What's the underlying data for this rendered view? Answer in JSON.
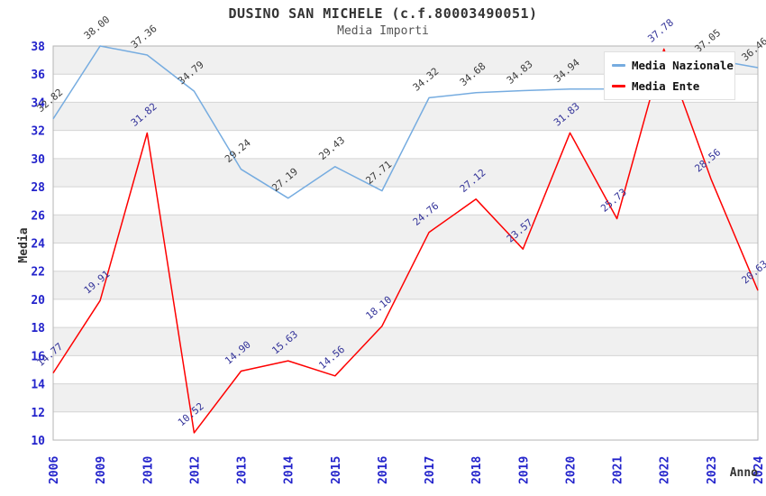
{
  "title": "DUSINO SAN MICHELE (c.f.80003490051)",
  "subtitle": "Media Importi",
  "legend": {
    "items": [
      {
        "label": "Media Nazionale",
        "color": "#76ace0"
      },
      {
        "label": "Media Ente",
        "color": "#fe0000"
      }
    ]
  },
  "chart_data": {
    "type": "line",
    "title": "DUSINO SAN MICHELE (c.f.80003490051)",
    "subtitle": "Media Importi",
    "xlabel": "Anno",
    "ylabel": "Media",
    "ylim": [
      10,
      38
    ],
    "ytick_step": 2,
    "grid": true,
    "legend_position": "top-right",
    "categories": [
      "2006",
      "2009",
      "2010",
      "2012",
      "2013",
      "2014",
      "2015",
      "2016",
      "2017",
      "2018",
      "2019",
      "2020",
      "2021",
      "2022",
      "2023",
      "2024"
    ],
    "series": [
      {
        "name": "Media Nazionale",
        "color": "#76ace0",
        "label_color": "#3c3c3c",
        "values": [
          32.82,
          38.0,
          37.36,
          34.79,
          29.24,
          27.19,
          29.43,
          27.71,
          34.32,
          34.68,
          34.83,
          34.94,
          34.95,
          36.0,
          37.05,
          36.46
        ],
        "labels": [
          "32.82",
          "38.00",
          "37.36",
          "34.79",
          "29.24",
          "27.19",
          "29.43",
          "27.71",
          "34.32",
          "34.68",
          "34.83",
          "34.94",
          "",
          "",
          "37.05",
          "36.46"
        ]
      },
      {
        "name": "Media Ente",
        "color": "#fe0000",
        "label_color": "#333399",
        "values": [
          14.77,
          19.91,
          31.82,
          10.52,
          14.9,
          15.63,
          14.56,
          18.1,
          24.76,
          27.12,
          23.57,
          31.83,
          25.73,
          37.78,
          28.56,
          20.63
        ],
        "labels": [
          "14.77",
          "19.91",
          "31.82",
          "10.52",
          "14.90",
          "15.63",
          "14.56",
          "18.10",
          "24.76",
          "27.12",
          "23.57",
          "31.83",
          "25.73",
          "37.78",
          "28.56",
          "20.63"
        ]
      }
    ]
  },
  "colors": {
    "tick": "#2323cb",
    "grid": "#d4d4d4",
    "band": "#f0f0f0",
    "border": "#b5b5b5",
    "axis_title": "#333333",
    "background": "#ffffff"
  }
}
